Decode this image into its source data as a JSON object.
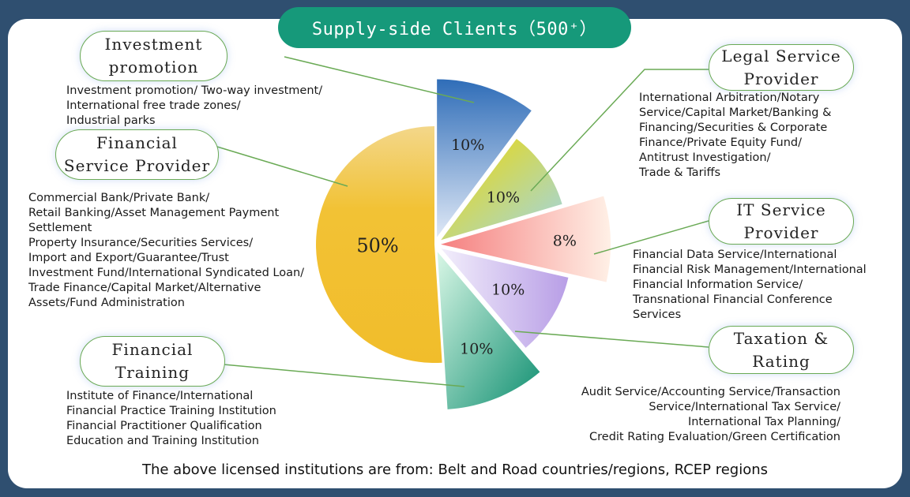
{
  "title": "Supply-side Clients（500⁺）",
  "footer": "The above licensed institutions are from: Belt and Road countries/regions, RCEP regions",
  "colors": {
    "accent": "#16997a",
    "connector": "#6aaa55"
  },
  "chart_data": {
    "type": "pie",
    "series": [
      {
        "name": "Investment promotion",
        "label": "10%",
        "value": 10,
        "color": "#3f78c4",
        "description": "Investment promotion/ Two-way investment/\nInternational free trade zones/\nIndustrial parks"
      },
      {
        "name": "Legal Service Provider",
        "label": "10%",
        "value": 10,
        "color": "#e8d21a",
        "description": "International Arbitration/Notary\nService/Capital Market/Banking &\nFinancing/Securities & Corporate\nFinance/Private Equity Fund/\nAntitrust Investigation/\nTrade & Tariffs"
      },
      {
        "name": "IT Service Provider",
        "label": "8%",
        "value": 8,
        "color": "#f6a0a0",
        "description": "Financial Data Service/International\nFinancial Risk Management/International\nFinancial Information Service/\nTransnational Financial Conference\nServices"
      },
      {
        "name": "Taxation & Rating",
        "label": "10%",
        "value": 10,
        "color": "#c7b4ea",
        "description": "Audit Service/Accounting Service/Transaction\nService/International Tax Service/\nInternational Tax Planning/\nCredit Rating Evaluation/Green Certification"
      },
      {
        "name": "Financial Training",
        "label": "10%",
        "value": 10,
        "color": "#25a889",
        "description": "Institute of Finance/International\nFinancial Practice Training Institution\nFinancial Practitioner Qualification\nEducation and Training Institution"
      },
      {
        "name": "Financial Service Provider",
        "label": "50%",
        "value": 50,
        "color": "#f2bd2c",
        "description": "Commercial Bank/Private Bank/\nRetail Banking/Asset Management Payment\nSettlement\nProperty Insurance/Securities Services/\nImport and Export/Guarantee/Trust\nInvestment Fund/International Syndicated Loan/\nTrade Finance/Capital Market/Alternative\nAssets/Fund Administration"
      }
    ]
  },
  "bubbles": [
    {
      "text": "Investment\npromotion"
    },
    {
      "text": "Legal Service\nProvider"
    },
    {
      "text": "IT Service\nProvider"
    },
    {
      "text": "Taxation &\nRating"
    },
    {
      "text": "Financial\nTraining"
    },
    {
      "text": "Financial\nService Provider"
    }
  ]
}
